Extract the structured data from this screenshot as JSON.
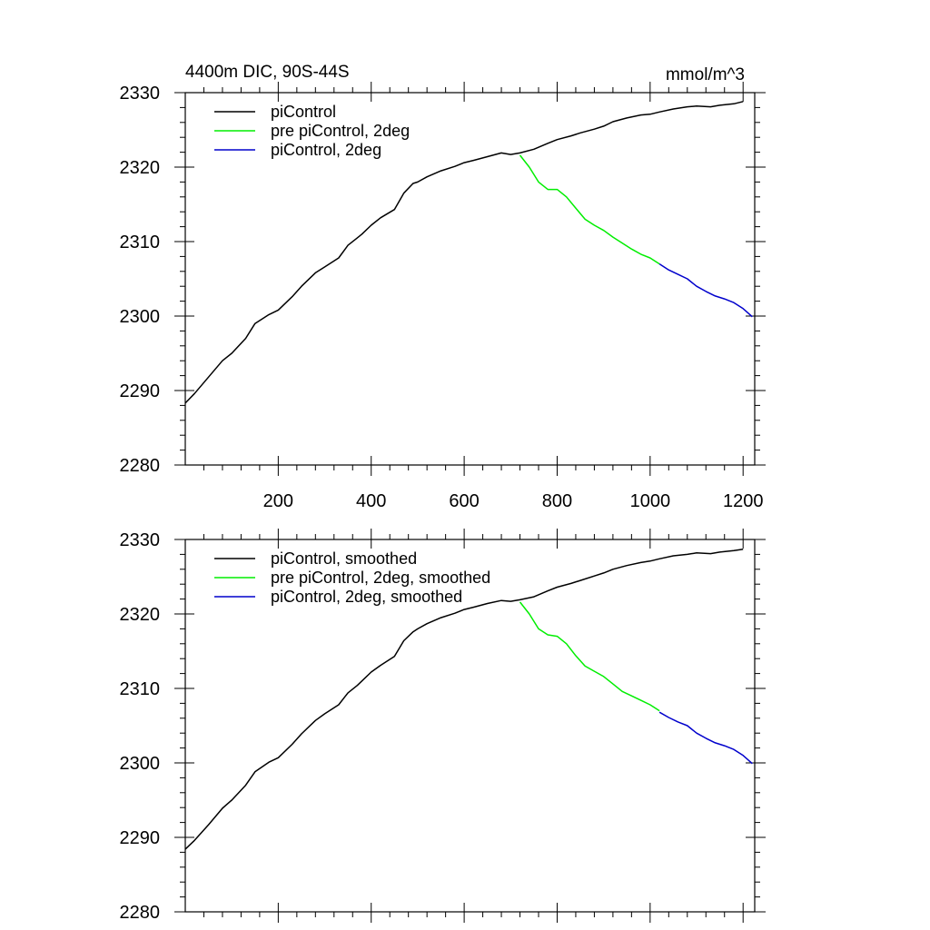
{
  "figure": {
    "title_left": "4400m DIC, 90S-44S",
    "title_right": "mmol/m^3"
  },
  "chart_data": [
    {
      "type": "line",
      "title": "4400m DIC, 90S-44S",
      "units": "mmol/m^3",
      "xlim": [
        0,
        1225
      ],
      "ylim": [
        2280,
        2330
      ],
      "xticks": [
        200,
        400,
        600,
        800,
        1000,
        1200
      ],
      "xtick_labels": [
        "200",
        "400",
        "600",
        "800",
        "1000",
        "1200"
      ],
      "yticks": [
        2280,
        2290,
        2300,
        2310,
        2320,
        2330
      ],
      "ytick_labels": [
        "2280",
        "2290",
        "2300",
        "2310",
        "2320",
        "2330"
      ],
      "grid": false,
      "legend_position": "top-left",
      "series": [
        {
          "name": "piControl",
          "color": "#000000",
          "x": [
            0,
            20,
            50,
            80,
            100,
            130,
            150,
            180,
            200,
            230,
            250,
            280,
            300,
            330,
            350,
            370,
            380,
            400,
            420,
            450,
            470,
            490,
            500,
            520,
            550,
            580,
            600,
            620,
            650,
            680,
            700,
            720,
            750,
            780,
            800,
            830,
            850,
            880,
            900,
            920,
            950,
            980,
            1000,
            1020,
            1050,
            1080,
            1100,
            1130,
            1150,
            1180,
            1200
          ],
          "y": [
            2288.3,
            2289.6,
            2291.8,
            2294.0,
            2295.0,
            2297.0,
            2299.0,
            2300.2,
            2300.8,
            2302.6,
            2304.0,
            2305.8,
            2306.6,
            2307.8,
            2309.5,
            2310.5,
            2311.0,
            2312.2,
            2313.2,
            2314.3,
            2316.5,
            2317.8,
            2318.0,
            2318.7,
            2319.5,
            2320.1,
            2320.6,
            2320.9,
            2321.4,
            2321.9,
            2321.7,
            2321.9,
            2322.4,
            2323.2,
            2323.7,
            2324.2,
            2324.6,
            2325.1,
            2325.5,
            2326.1,
            2326.6,
            2327.0,
            2327.1,
            2327.4,
            2327.8,
            2328.1,
            2328.2,
            2328.1,
            2328.3,
            2328.5,
            2328.8
          ]
        },
        {
          "name": "pre piControl, 2deg",
          "color": "#00ee00",
          "x": [
            720,
            740,
            760,
            780,
            800,
            820,
            840,
            860,
            880,
            900,
            920,
            940,
            960,
            980,
            1000,
            1020
          ],
          "y": [
            2321.6,
            2320.0,
            2318.0,
            2317.0,
            2317.0,
            2316.0,
            2314.5,
            2313.0,
            2312.2,
            2311.5,
            2310.6,
            2309.8,
            2309.0,
            2308.3,
            2307.8,
            2307.0
          ]
        },
        {
          "name": "piControl, 2deg",
          "color": "#0000cc",
          "x": [
            1020,
            1040,
            1060,
            1080,
            1100,
            1120,
            1140,
            1160,
            1180,
            1200,
            1220
          ],
          "y": [
            2307.0,
            2306.2,
            2305.6,
            2305.0,
            2304.0,
            2303.3,
            2302.7,
            2302.3,
            2301.8,
            2301.0,
            2299.9
          ]
        }
      ]
    },
    {
      "type": "line",
      "xlim": [
        0,
        1225
      ],
      "ylim": [
        2280,
        2330
      ],
      "xticks": [
        200,
        400,
        600,
        800,
        1000,
        1200
      ],
      "yticks": [
        2280,
        2290,
        2300,
        2310,
        2320,
        2330
      ],
      "ytick_labels": [
        "2280",
        "2290",
        "2300",
        "2310",
        "2320",
        "2330"
      ],
      "grid": false,
      "legend_position": "top-left",
      "series": [
        {
          "name": "piControl, smoothed",
          "color": "#000000",
          "x": [
            0,
            20,
            50,
            80,
            100,
            130,
            150,
            180,
            200,
            230,
            250,
            280,
            300,
            330,
            350,
            370,
            380,
            400,
            420,
            450,
            470,
            490,
            500,
            520,
            550,
            580,
            600,
            620,
            650,
            680,
            700,
            720,
            750,
            780,
            800,
            830,
            850,
            880,
            900,
            920,
            950,
            980,
            1000,
            1020,
            1050,
            1080,
            1100,
            1130,
            1150,
            1180,
            1200
          ],
          "y": [
            2288.4,
            2289.6,
            2291.7,
            2293.9,
            2295.0,
            2297.0,
            2298.8,
            2300.1,
            2300.7,
            2302.5,
            2303.9,
            2305.7,
            2306.6,
            2307.8,
            2309.4,
            2310.4,
            2311.0,
            2312.2,
            2313.1,
            2314.3,
            2316.4,
            2317.6,
            2318.0,
            2318.7,
            2319.5,
            2320.1,
            2320.6,
            2320.9,
            2321.4,
            2321.8,
            2321.7,
            2321.9,
            2322.3,
            2323.1,
            2323.6,
            2324.1,
            2324.5,
            2325.1,
            2325.5,
            2326.0,
            2326.5,
            2326.9,
            2327.1,
            2327.4,
            2327.8,
            2328.0,
            2328.2,
            2328.1,
            2328.3,
            2328.5,
            2328.7
          ]
        },
        {
          "name": "pre piControl, 2deg, smoothed",
          "color": "#00ee00",
          "x": [
            720,
            740,
            760,
            780,
            800,
            820,
            840,
            860,
            880,
            900,
            920,
            940,
            960,
            980,
            1000,
            1020
          ],
          "y": [
            2321.6,
            2320.0,
            2318.0,
            2317.2,
            2317.0,
            2316.0,
            2314.4,
            2313.0,
            2312.3,
            2311.6,
            2310.6,
            2309.6,
            2309.0,
            2308.4,
            2307.8,
            2307.0
          ]
        },
        {
          "name": "piControl, 2deg, smoothed",
          "color": "#0000cc",
          "x": [
            1020,
            1040,
            1060,
            1080,
            1100,
            1120,
            1140,
            1160,
            1180,
            1200,
            1220
          ],
          "y": [
            2306.8,
            2306.1,
            2305.5,
            2305.0,
            2304.0,
            2303.3,
            2302.7,
            2302.3,
            2301.8,
            2301.0,
            2299.9
          ]
        }
      ]
    }
  ]
}
